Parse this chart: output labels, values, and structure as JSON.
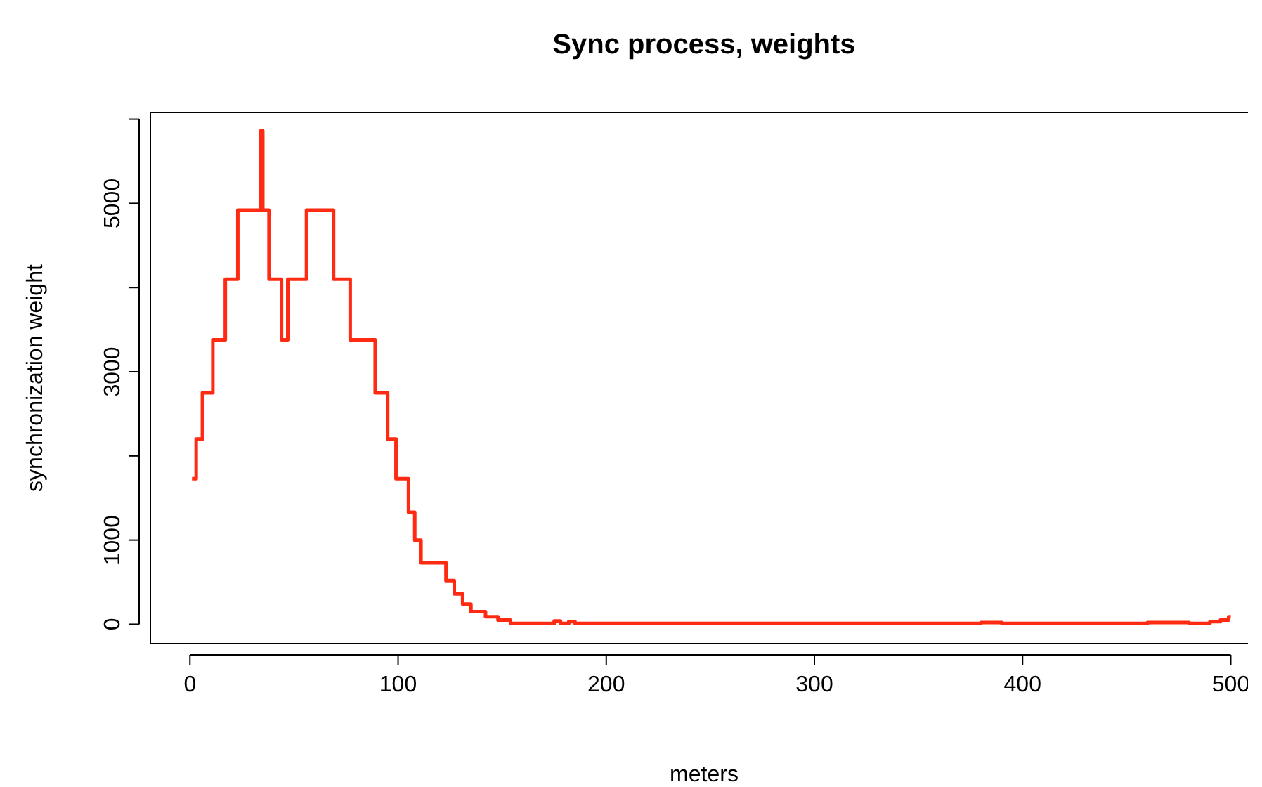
{
  "chart_data": {
    "type": "step",
    "title": "Sync process, weights",
    "xlabel": "meters",
    "ylabel": "synchronization weight",
    "x": [
      1,
      3,
      6,
      11,
      17,
      23,
      34,
      35,
      38,
      44,
      47,
      56,
      69,
      77,
      89,
      95,
      99,
      105,
      108,
      111,
      123,
      127,
      131,
      135,
      142,
      148,
      154,
      175,
      178,
      182,
      185,
      380,
      390,
      460,
      480,
      490,
      495,
      499,
      500
    ],
    "series": [
      {
        "color": "#ff2a12",
        "values": [
          1730,
          2200,
          2750,
          3380,
          4100,
          4920,
          5860,
          4920,
          4100,
          3380,
          4100,
          4920,
          4100,
          3380,
          2750,
          2200,
          1730,
          1330,
          1000,
          730,
          520,
          360,
          240,
          150,
          90,
          50,
          10,
          40,
          10,
          30,
          10,
          20,
          10,
          20,
          10,
          30,
          50,
          90,
          90
        ]
      }
    ],
    "xlim": [
      -19,
      513
    ],
    "ylim": [
      -230,
      6080
    ],
    "xticks": [
      0,
      100,
      200,
      300,
      400,
      500
    ],
    "yticks": [
      0,
      1000,
      {
        "value": 2000,
        "label": null
      },
      3000,
      {
        "value": 4000,
        "label": null
      },
      5000,
      {
        "value": 6000,
        "label": null
      }
    ],
    "grid": false,
    "line_style": "solid",
    "marker": "none"
  }
}
